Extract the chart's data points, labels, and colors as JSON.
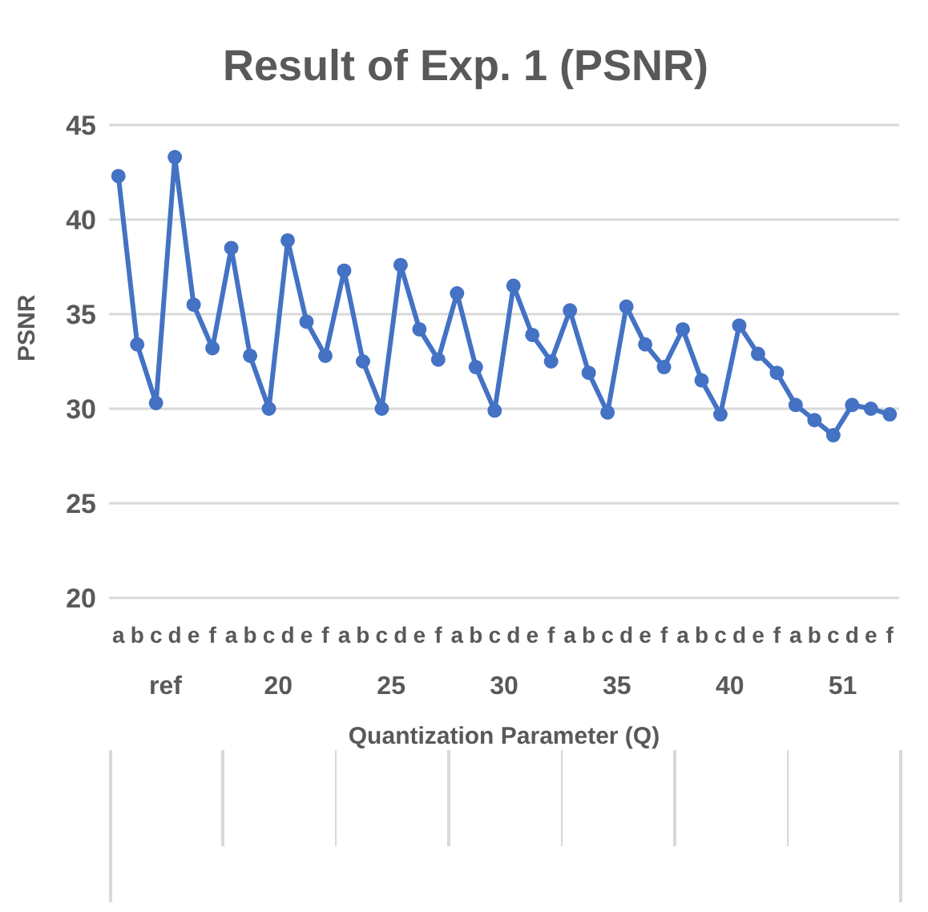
{
  "chart_data": {
    "type": "line",
    "title": "Result of Exp. 1 (PSNR)",
    "xlabel": "Quantization Parameter (Q)",
    "ylabel": "PSNR",
    "categories": [
      "a",
      "b",
      "c",
      "d",
      "e",
      "f",
      "a",
      "b",
      "c",
      "d",
      "e",
      "f",
      "a",
      "b",
      "c",
      "d",
      "e",
      "f",
      "a",
      "b",
      "c",
      "d",
      "e",
      "f",
      "a",
      "b",
      "c",
      "d",
      "e",
      "f",
      "a",
      "b",
      "c",
      "d",
      "e",
      "f",
      "a",
      "b",
      "c",
      "d",
      "e",
      "f"
    ],
    "annotations": [
      "ref",
      "20",
      "25",
      "30",
      "35",
      "40",
      "51"
    ],
    "series": [
      {
        "color": "#4472c4",
        "values": [
          42.3,
          33.4,
          30.3,
          43.3,
          35.5,
          33.2,
          38.5,
          32.8,
          30.0,
          38.9,
          34.6,
          32.8,
          37.3,
          32.5,
          30.0,
          37.6,
          34.2,
          32.6,
          36.1,
          32.2,
          29.9,
          36.5,
          33.9,
          32.5,
          35.2,
          31.9,
          29.8,
          35.4,
          33.4,
          32.2,
          34.2,
          31.5,
          29.7,
          34.4,
          32.9,
          31.9,
          30.2,
          29.4,
          28.6,
          30.2,
          30.0,
          29.7
        ]
      }
    ],
    "ylim": [
      20,
      45
    ],
    "yticks": [
      20,
      25,
      30,
      35,
      40,
      45
    ],
    "grid": "y",
    "marker": "circle",
    "line_style": "solid"
  }
}
